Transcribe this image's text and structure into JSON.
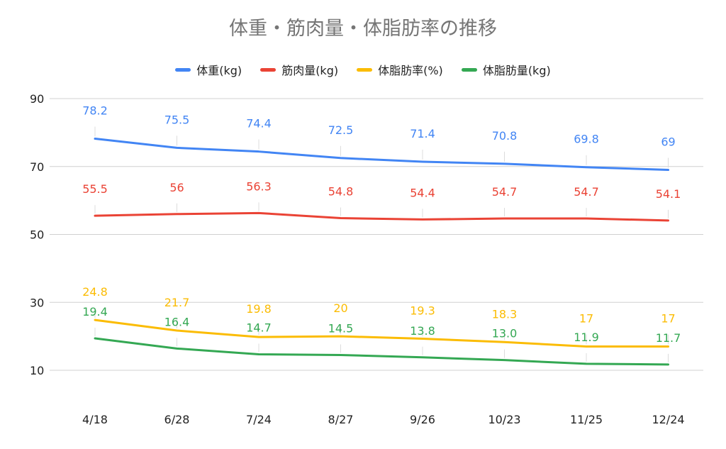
{
  "chart_data": {
    "type": "line",
    "title": "体重・筋肉量・体脂肪率の推移",
    "xlabel": "",
    "ylabel": "",
    "categories": [
      "4/18",
      "6/28",
      "7/24",
      "8/27",
      "9/26",
      "10/23",
      "11/25",
      "12/24"
    ],
    "ylim": [
      10,
      90
    ],
    "yticks": [
      "10",
      "30",
      "50",
      "70",
      "90"
    ],
    "legend_position": "top-center",
    "grid": true,
    "series": [
      {
        "name": "体重(kg)",
        "color": "#4285F4",
        "values": [
          78.2,
          75.5,
          74.4,
          72.5,
          71.4,
          70.8,
          69.8,
          69
        ],
        "labels": [
          "78.2",
          "75.5",
          "74.4",
          "72.5",
          "71.4",
          "70.8",
          "69.8",
          "69"
        ]
      },
      {
        "name": "筋肉量(kg)",
        "color": "#EA4335",
        "values": [
          55.5,
          56,
          56.3,
          54.8,
          54.4,
          54.7,
          54.7,
          54.1
        ],
        "labels": [
          "55.5",
          "56",
          "56.3",
          "54.8",
          "54.4",
          "54.7",
          "54.7",
          "54.1"
        ]
      },
      {
        "name": "体脂肪率(%)",
        "color": "#FBBC04",
        "values": [
          24.8,
          21.7,
          19.8,
          20,
          19.3,
          18.3,
          17,
          17
        ],
        "labels": [
          "24.8",
          "21.7",
          "19.8",
          "20",
          "19.3",
          "18.3",
          "17",
          "17"
        ]
      },
      {
        "name": "体脂肪量(kg)",
        "color": "#34A853",
        "values": [
          19.4,
          16.4,
          14.7,
          14.5,
          13.8,
          13.0,
          11.9,
          11.7
        ],
        "labels": [
          "19.4",
          "16.4",
          "14.7",
          "14.5",
          "13.8",
          "13.0",
          "11.9",
          "11.7"
        ]
      }
    ]
  }
}
